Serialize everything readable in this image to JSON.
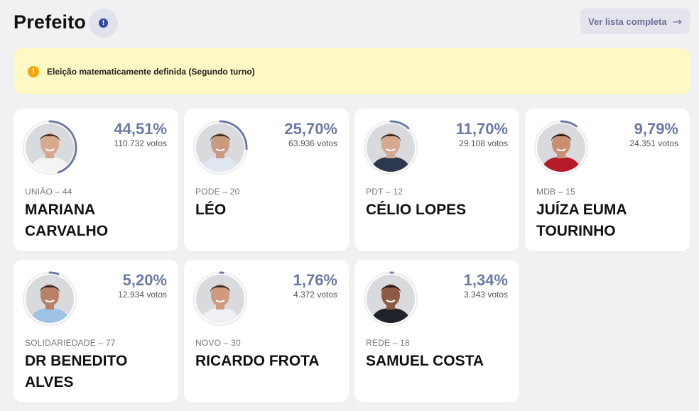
{
  "header": {
    "title": "Prefeito",
    "info_icon": "!",
    "full_list_label": "Ver lista completa",
    "full_list_icon": "→"
  },
  "alert": {
    "icon": "!",
    "message": "Eleição matematicamente definida (Segundo turno)"
  },
  "colors": {
    "accent": "#6a7aa6",
    "ring": "#6a7aa6",
    "alert_bg": "#fdf8c4",
    "warn": "#f4a60d"
  },
  "candidates": [
    {
      "party": "UNIÃO – 44",
      "name": "MARIANA CARVALHO",
      "percent": "44,51%",
      "votes": "110.732 votos",
      "share": 0.4451,
      "skin": "#d6a98c",
      "hair": "#3a2418",
      "shirt": "#f4f4f4"
    },
    {
      "party": "PODE – 20",
      "name": "LÉO",
      "percent": "25,70%",
      "votes": "63.936 votos",
      "share": 0.257,
      "skin": "#c99a80",
      "hair": "#2b2421",
      "shirt": "#dfe6ef"
    },
    {
      "party": "PDT – 12",
      "name": "CÉLIO LOPES",
      "percent": "11,70%",
      "votes": "29.108 votos",
      "share": 0.117,
      "skin": "#d4a98f",
      "hair": "#1f1a18",
      "shirt": "#2c3850"
    },
    {
      "party": "MDB – 15",
      "name": "JUÍZA EUMA TOURINHO",
      "percent": "9,79%",
      "votes": "24.351 votos",
      "share": 0.0979,
      "skin": "#c98f72",
      "hair": "#1a1210",
      "shirt": "#b51a28"
    },
    {
      "party": "SOLIDARIEDADE – 77",
      "name": "DR BENEDITO ALVES",
      "percent": "5,20%",
      "votes": "12.934 votos",
      "share": 0.052,
      "skin": "#b98068",
      "hair": "#2d2521",
      "shirt": "#9ec3e6"
    },
    {
      "party": "NOVO – 30",
      "name": "RICARDO FROTA",
      "percent": "1,76%",
      "votes": "4.372 votos",
      "share": 0.0176,
      "skin": "#cf9a7e",
      "hair": "#2a211c",
      "shirt": "#eef0f3"
    },
    {
      "party": "REDE – 18",
      "name": "SAMUEL COSTA",
      "percent": "1,34%",
      "votes": "3.343 votos",
      "share": 0.0134,
      "skin": "#8d5a43",
      "hair": "#17110f",
      "shirt": "#20222a"
    }
  ]
}
